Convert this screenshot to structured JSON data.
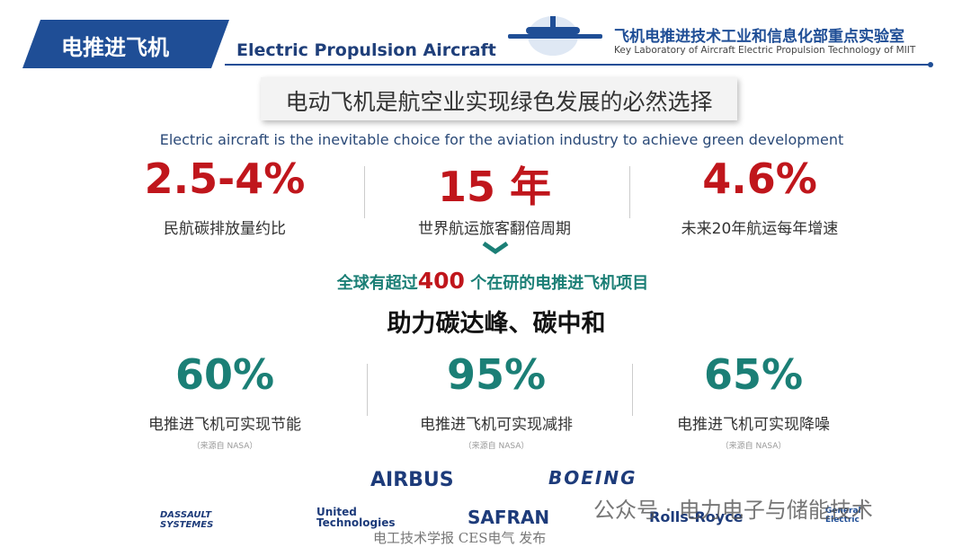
{
  "header": {
    "badge": "电推进飞机",
    "title_en": "Electric Propulsion Aircraft",
    "lab_cn": "飞机电推进技术工业和信息化部重点实验室",
    "lab_en": "Key Laboratory of Aircraft Electric Propulsion Technology of MIIT"
  },
  "headline": {
    "cn": "电动飞机是航空业实现绿色发展的必然选择",
    "en": "Electric aircraft is the inevitable choice for the aviation industry to achieve green development"
  },
  "stats_top": [
    {
      "value": "2.5-4%",
      "label": "民航碳排放量约比"
    },
    {
      "value": "15 年",
      "label": "世界航运旅客翻倍周期"
    },
    {
      "value": "4.6%",
      "label": "未来20年航运每年增速"
    }
  ],
  "projects": {
    "prefix": "全球有超过",
    "number": "400",
    "suffix": "个在研的电推进飞机项目"
  },
  "slogan": "助力碳达峰、碳中和",
  "stats_bottom": [
    {
      "value": "60%",
      "label": "电推进飞机可实现节能",
      "source": "（来源自 NASA）"
    },
    {
      "value": "95%",
      "label": "电推进飞机可实现减排",
      "source": "（来源自 NASA）"
    },
    {
      "value": "65%",
      "label": "电推进飞机可实现降噪",
      "source": "（来源自 NASA）"
    }
  ],
  "logos": [
    "AIRBUS",
    "BOEING",
    "DASSAULT SYSTEMES",
    "United Technologies",
    "SAFRAN",
    "Rolls-Royce",
    "General Electric"
  ],
  "watermark": "公众号 · 电力电子与储能技术",
  "footer": "电工技术学报 CES电气 发布"
}
